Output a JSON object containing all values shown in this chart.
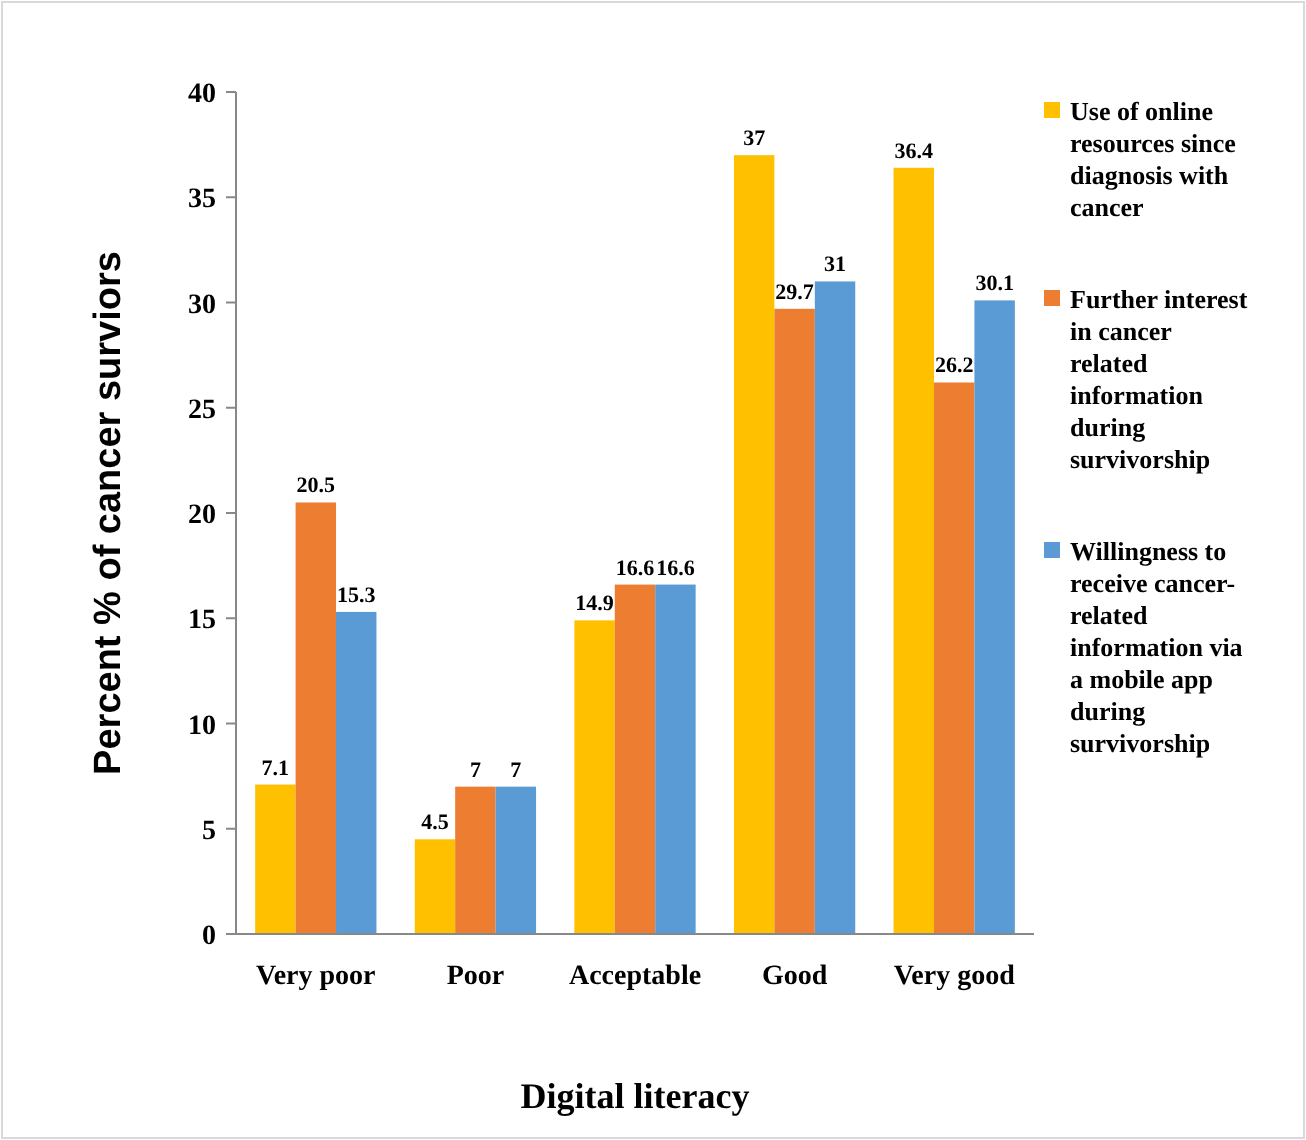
{
  "chart_data": {
    "type": "bar",
    "xlabel": "Digital literacy",
    "ylabel": "Percent % of cancer surviors",
    "categories": [
      "Very poor",
      "Poor",
      "Acceptable",
      "Good",
      "Very good"
    ],
    "series": [
      {
        "name": "Use of online resources since diagnosis with cancer",
        "color": "#ffc000",
        "values": [
          7.1,
          4.5,
          14.9,
          37,
          36.4
        ]
      },
      {
        "name": "Further interest in cancer related information during survivorship",
        "color": "#ed7d31",
        "values": [
          20.5,
          7,
          16.6,
          29.7,
          26.2
        ]
      },
      {
        "name": "Willingness to receive cancer-related information via a mobile app during survivorship",
        "color": "#5b9bd5",
        "values": [
          15.3,
          7,
          16.6,
          31,
          30.1
        ]
      }
    ],
    "ylim": [
      0,
      40
    ],
    "yticks": [
      0,
      5,
      10,
      15,
      20,
      25,
      30,
      35,
      40
    ],
    "data_labels": true,
    "legend": "right",
    "grid": false
  }
}
